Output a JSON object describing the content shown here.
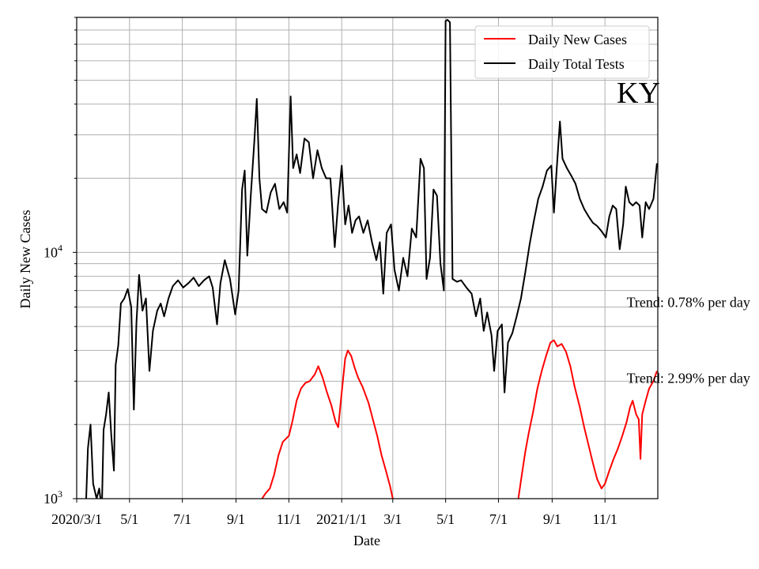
{
  "chart_data": {
    "type": "line",
    "title": "KY",
    "xlabel": "Date",
    "ylabel": "Daily New Cases",
    "yscale": "log",
    "ylim": [
      1000,
      90000
    ],
    "xlim": [
      "2020-03-01",
      "2022-01-01"
    ],
    "grid": true,
    "legend_position": "top-right",
    "x_ticks": [
      {
        "date": "2020-03-01",
        "label": "2020/3/1"
      },
      {
        "date": "2020-05-01",
        "label": "5/1"
      },
      {
        "date": "2020-07-01",
        "label": "7/1"
      },
      {
        "date": "2020-09-01",
        "label": "9/1"
      },
      {
        "date": "2020-11-01",
        "label": "11/1"
      },
      {
        "date": "2021-01-01",
        "label": "2021/1/1"
      },
      {
        "date": "2021-03-01",
        "label": "3/1"
      },
      {
        "date": "2021-05-01",
        "label": "5/1"
      },
      {
        "date": "2021-07-01",
        "label": "7/1"
      },
      {
        "date": "2021-09-01",
        "label": "9/1"
      },
      {
        "date": "2021-11-01",
        "label": "11/1"
      }
    ],
    "y_ticks": [
      {
        "value": 1000,
        "label_base": "10",
        "label_exp": "3"
      },
      {
        "value": 10000,
        "label_base": "10",
        "label_exp": "4"
      }
    ],
    "series": [
      {
        "name": "Daily New Cases",
        "color": "#ff0000",
        "points": [
          [
            "2020-10-01",
            1000
          ],
          [
            "2020-10-05",
            1050
          ],
          [
            "2020-10-10",
            1100
          ],
          [
            "2020-10-15",
            1250
          ],
          [
            "2020-10-20",
            1500
          ],
          [
            "2020-10-25",
            1700
          ],
          [
            "2020-11-01",
            1800
          ],
          [
            "2020-11-05",
            2050
          ],
          [
            "2020-11-10",
            2500
          ],
          [
            "2020-11-15",
            2800
          ],
          [
            "2020-11-20",
            2950
          ],
          [
            "2020-11-25",
            3000
          ],
          [
            "2020-12-01",
            3200
          ],
          [
            "2020-12-05",
            3450
          ],
          [
            "2020-12-10",
            3100
          ],
          [
            "2020-12-15",
            2700
          ],
          [
            "2020-12-20",
            2400
          ],
          [
            "2020-12-25",
            2050
          ],
          [
            "2020-12-28",
            1950
          ],
          [
            "2021-01-01",
            2700
          ],
          [
            "2021-01-05",
            3700
          ],
          [
            "2021-01-08",
            4000
          ],
          [
            "2021-01-12",
            3800
          ],
          [
            "2021-01-16",
            3400
          ],
          [
            "2021-01-20",
            3100
          ],
          [
            "2021-01-25",
            2850
          ],
          [
            "2021-02-01",
            2450
          ],
          [
            "2021-02-06",
            2100
          ],
          [
            "2021-02-11",
            1800
          ],
          [
            "2021-02-16",
            1500
          ],
          [
            "2021-02-21",
            1300
          ],
          [
            "2021-02-26",
            1120
          ],
          [
            "2021-03-01",
            1000
          ]
        ]
      },
      {
        "name": "Daily New Cases",
        "color": "#ff0000",
        "points": [
          [
            "2021-07-24",
            1000
          ],
          [
            "2021-07-28",
            1250
          ],
          [
            "2021-08-01",
            1550
          ],
          [
            "2021-08-05",
            1850
          ],
          [
            "2021-08-10",
            2250
          ],
          [
            "2021-08-15",
            2800
          ],
          [
            "2021-08-20",
            3300
          ],
          [
            "2021-08-25",
            3800
          ],
          [
            "2021-08-30",
            4300
          ],
          [
            "2021-09-03",
            4400
          ],
          [
            "2021-09-07",
            4150
          ],
          [
            "2021-09-12",
            4250
          ],
          [
            "2021-09-17",
            3950
          ],
          [
            "2021-09-22",
            3450
          ],
          [
            "2021-09-27",
            2850
          ],
          [
            "2021-10-03",
            2350
          ],
          [
            "2021-10-08",
            1950
          ],
          [
            "2021-10-13",
            1650
          ],
          [
            "2021-10-18",
            1400
          ],
          [
            "2021-10-23",
            1200
          ],
          [
            "2021-10-28",
            1100
          ],
          [
            "2021-11-01",
            1150
          ],
          [
            "2021-11-06",
            1300
          ],
          [
            "2021-11-11",
            1450
          ],
          [
            "2021-11-16",
            1600
          ],
          [
            "2021-11-21",
            1800
          ],
          [
            "2021-11-26",
            2050
          ],
          [
            "2021-11-30",
            2350
          ],
          [
            "2021-12-03",
            2500
          ],
          [
            "2021-12-07",
            2200
          ],
          [
            "2021-12-10",
            2100
          ],
          [
            "2021-12-12",
            1450
          ],
          [
            "2021-12-14",
            2200
          ],
          [
            "2021-12-18",
            2500
          ],
          [
            "2021-12-22",
            2800
          ],
          [
            "2021-12-27",
            3000
          ],
          [
            "2021-12-31",
            3300
          ]
        ]
      },
      {
        "name": "Daily Total Tests",
        "color": "#000000",
        "points": [
          [
            "2020-03-12",
            1000
          ],
          [
            "2020-03-14",
            1600
          ],
          [
            "2020-03-17",
            2000
          ],
          [
            "2020-03-20",
            1150
          ],
          [
            "2020-03-24",
            1000
          ],
          [
            "2020-03-27",
            1100
          ],
          [
            "2020-03-30",
            900
          ],
          [
            "2020-04-01",
            1900
          ],
          [
            "2020-04-04",
            2200
          ],
          [
            "2020-04-07",
            2700
          ],
          [
            "2020-04-10",
            1800
          ],
          [
            "2020-04-13",
            1300
          ],
          [
            "2020-04-15",
            3500
          ],
          [
            "2020-04-18",
            4200
          ],
          [
            "2020-04-21",
            6200
          ],
          [
            "2020-04-25",
            6500
          ],
          [
            "2020-04-29",
            7100
          ],
          [
            "2020-05-03",
            6000
          ],
          [
            "2020-05-06",
            2300
          ],
          [
            "2020-05-09",
            5200
          ],
          [
            "2020-05-12",
            8100
          ],
          [
            "2020-05-16",
            5800
          ],
          [
            "2020-05-20",
            6500
          ],
          [
            "2020-05-24",
            3300
          ],
          [
            "2020-05-28",
            4800
          ],
          [
            "2020-06-02",
            5800
          ],
          [
            "2020-06-06",
            6200
          ],
          [
            "2020-06-10",
            5500
          ],
          [
            "2020-06-15",
            6500
          ],
          [
            "2020-06-20",
            7300
          ],
          [
            "2020-06-26",
            7700
          ],
          [
            "2020-07-02",
            7200
          ],
          [
            "2020-07-08",
            7500
          ],
          [
            "2020-07-14",
            7900
          ],
          [
            "2020-07-20",
            7300
          ],
          [
            "2020-07-26",
            7700
          ],
          [
            "2020-08-01",
            8000
          ],
          [
            "2020-08-05",
            7200
          ],
          [
            "2020-08-10",
            5100
          ],
          [
            "2020-08-14",
            7500
          ],
          [
            "2020-08-19",
            9300
          ],
          [
            "2020-08-25",
            7800
          ],
          [
            "2020-08-31",
            5600
          ],
          [
            "2020-09-04",
            7000
          ],
          [
            "2020-09-08",
            18000
          ],
          [
            "2020-09-11",
            21500
          ],
          [
            "2020-09-14",
            9700
          ],
          [
            "2020-09-18",
            17000
          ],
          [
            "2020-09-22",
            28000
          ],
          [
            "2020-09-25",
            42000
          ],
          [
            "2020-09-28",
            20000
          ],
          [
            "2020-10-01",
            15000
          ],
          [
            "2020-10-06",
            14500
          ],
          [
            "2020-10-11",
            17500
          ],
          [
            "2020-10-16",
            19000
          ],
          [
            "2020-10-21",
            15000
          ],
          [
            "2020-10-26",
            16000
          ],
          [
            "2020-10-30",
            14500
          ],
          [
            "2020-11-03",
            43000
          ],
          [
            "2020-11-06",
            22000
          ],
          [
            "2020-11-10",
            25000
          ],
          [
            "2020-11-14",
            21000
          ],
          [
            "2020-11-19",
            29000
          ],
          [
            "2020-11-24",
            28000
          ],
          [
            "2020-11-29",
            20000
          ],
          [
            "2020-12-04",
            26000
          ],
          [
            "2020-12-09",
            22000
          ],
          [
            "2020-12-14",
            20000
          ],
          [
            "2020-12-19",
            20000
          ],
          [
            "2020-12-24",
            10500
          ],
          [
            "2020-12-28",
            16000
          ],
          [
            "2021-01-01",
            22500
          ],
          [
            "2021-01-05",
            13000
          ],
          [
            "2021-01-09",
            15500
          ],
          [
            "2021-01-13",
            12000
          ],
          [
            "2021-01-17",
            13500
          ],
          [
            "2021-01-21",
            14000
          ],
          [
            "2021-01-26",
            12000
          ],
          [
            "2021-01-31",
            13500
          ],
          [
            "2021-02-05",
            11000
          ],
          [
            "2021-02-10",
            9300
          ],
          [
            "2021-02-14",
            11000
          ],
          [
            "2021-02-18",
            6800
          ],
          [
            "2021-02-22",
            12000
          ],
          [
            "2021-02-27",
            13000
          ],
          [
            "2021-03-03",
            8500
          ],
          [
            "2021-03-08",
            7000
          ],
          [
            "2021-03-13",
            9500
          ],
          [
            "2021-03-18",
            8000
          ],
          [
            "2021-03-23",
            12500
          ],
          [
            "2021-03-28",
            11500
          ],
          [
            "2021-04-02",
            24000
          ],
          [
            "2021-04-06",
            22000
          ],
          [
            "2021-04-09",
            7800
          ],
          [
            "2021-04-13",
            9500
          ],
          [
            "2021-04-17",
            18000
          ],
          [
            "2021-04-21",
            17000
          ],
          [
            "2021-04-25",
            9000
          ],
          [
            "2021-04-29",
            7000
          ],
          [
            "2021-05-01",
            87000
          ],
          [
            "2021-05-03",
            88000
          ],
          [
            "2021-05-06",
            86000
          ],
          [
            "2021-05-09",
            7800
          ],
          [
            "2021-05-14",
            7600
          ],
          [
            "2021-05-19",
            7700
          ],
          [
            "2021-05-25",
            7200
          ],
          [
            "2021-05-31",
            6800
          ],
          [
            "2021-06-05",
            5500
          ],
          [
            "2021-06-10",
            6500
          ],
          [
            "2021-06-14",
            4800
          ],
          [
            "2021-06-18",
            5700
          ],
          [
            "2021-06-23",
            4600
          ],
          [
            "2021-06-26",
            3300
          ],
          [
            "2021-06-30",
            4800
          ],
          [
            "2021-07-05",
            5100
          ],
          [
            "2021-07-08",
            2700
          ],
          [
            "2021-07-12",
            4300
          ],
          [
            "2021-07-17",
            4700
          ],
          [
            "2021-07-22",
            5500
          ],
          [
            "2021-07-27",
            6500
          ],
          [
            "2021-08-01",
            8300
          ],
          [
            "2021-08-06",
            10800
          ],
          [
            "2021-08-11",
            13500
          ],
          [
            "2021-08-16",
            16500
          ],
          [
            "2021-08-21",
            18500
          ],
          [
            "2021-08-26",
            21500
          ],
          [
            "2021-08-31",
            22500
          ],
          [
            "2021-09-03",
            14500
          ],
          [
            "2021-09-06",
            21000
          ],
          [
            "2021-09-10",
            34000
          ],
          [
            "2021-09-13",
            24000
          ],
          [
            "2021-09-18",
            22000
          ],
          [
            "2021-09-23",
            20500
          ],
          [
            "2021-09-28",
            19000
          ],
          [
            "2021-10-03",
            16500
          ],
          [
            "2021-10-08",
            15000
          ],
          [
            "2021-10-13",
            14000
          ],
          [
            "2021-10-18",
            13200
          ],
          [
            "2021-10-23",
            12800
          ],
          [
            "2021-10-28",
            12200
          ],
          [
            "2021-11-02",
            11500
          ],
          [
            "2021-11-06",
            14000
          ],
          [
            "2021-11-10",
            15500
          ],
          [
            "2021-11-14",
            15000
          ],
          [
            "2021-11-18",
            10300
          ],
          [
            "2021-11-22",
            13000
          ],
          [
            "2021-11-25",
            18500
          ],
          [
            "2021-11-29",
            16000
          ],
          [
            "2021-12-03",
            15500
          ],
          [
            "2021-12-07",
            16000
          ],
          [
            "2021-12-11",
            15500
          ],
          [
            "2021-12-14",
            11500
          ],
          [
            "2021-12-18",
            16000
          ],
          [
            "2021-12-22",
            15000
          ],
          [
            "2021-12-27",
            16500
          ],
          [
            "2021-12-31",
            23000
          ]
        ]
      }
    ],
    "annotations": [
      {
        "text": "Trend: 0.78% per day",
        "x": "2021-11-26",
        "y": 6000
      },
      {
        "text": "Trend: 2.99% per day",
        "x": "2021-11-26",
        "y": 2950
      }
    ]
  },
  "legend": [
    {
      "label": "Daily New Cases",
      "color": "#ff0000"
    },
    {
      "label": "Daily Total Tests",
      "color": "#000000"
    }
  ]
}
